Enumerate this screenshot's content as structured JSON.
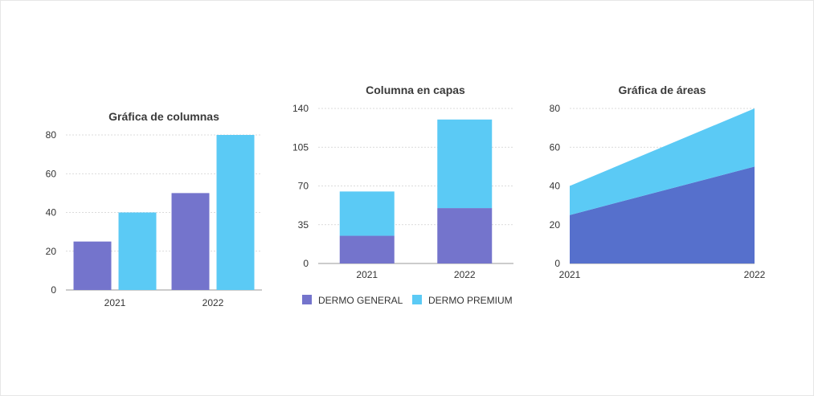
{
  "colors": {
    "general": "#7474CC",
    "premium": "#5BCAF5",
    "area_general": "#5670CC",
    "grid": "#cfcfcf",
    "axis": "#9a9a9a"
  },
  "chart_data": [
    {
      "type": "bar",
      "title": "Gráfica de columnas",
      "categories": [
        "2021",
        "2022"
      ],
      "series": [
        {
          "name": "DERMO GENERAL",
          "values": [
            25,
            50
          ]
        },
        {
          "name": "DERMO PREMIUM",
          "values": [
            40,
            80
          ]
        }
      ],
      "ylim": [
        0,
        80
      ],
      "yticks": [
        "0",
        "20",
        "40",
        "60",
        "80"
      ],
      "grid": true
    },
    {
      "type": "bar",
      "stacked": true,
      "title": "Columna en capas",
      "categories": [
        "2021",
        "2022"
      ],
      "series": [
        {
          "name": "DERMO GENERAL",
          "values": [
            25,
            50
          ]
        },
        {
          "name": "DERMO PREMIUM",
          "values": [
            40,
            80
          ]
        }
      ],
      "ylim": [
        0,
        140
      ],
      "yticks": [
        "0",
        "35",
        "70",
        "105",
        "140"
      ],
      "grid": true,
      "legend": "bottom"
    },
    {
      "type": "area",
      "stacked": true,
      "title": "Gráfica de áreas",
      "x": [
        "2021",
        "2022"
      ],
      "series": [
        {
          "name": "DERMO GENERAL",
          "values": [
            25,
            50
          ]
        },
        {
          "name": "DERMO PREMIUM",
          "values": [
            15,
            30
          ]
        }
      ],
      "ylim": [
        0,
        80
      ],
      "yticks": [
        "0",
        "20",
        "40",
        "60",
        "80"
      ],
      "grid": true
    }
  ],
  "legend": {
    "items": [
      "DERMO GENERAL",
      "DERMO PREMIUM"
    ]
  }
}
